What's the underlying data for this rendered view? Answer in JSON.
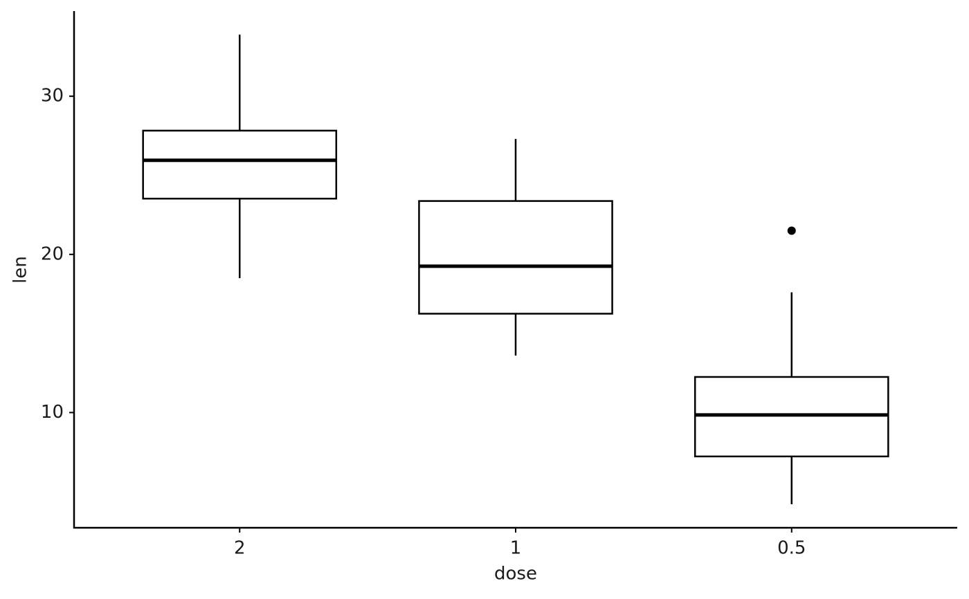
{
  "chart_data": {
    "type": "box",
    "x_label": "dose",
    "y_label": "len",
    "categories": [
      "2",
      "1",
      "0.5"
    ],
    "min": [
      18.5,
      13.6,
      4.2
    ],
    "q1": [
      23.525,
      16.25,
      7.225
    ],
    "median": [
      25.95,
      19.25,
      9.85
    ],
    "q3": [
      27.825,
      23.375,
      12.25
    ],
    "max": [
      33.9,
      27.3,
      17.6
    ],
    "outliers": [
      [],
      [],
      [
        21.5
      ]
    ],
    "color": "#000000",
    "ylim": [
      2.715,
      35.385
    ],
    "yticks": [
      10,
      20,
      30
    ],
    "grid": false
  }
}
